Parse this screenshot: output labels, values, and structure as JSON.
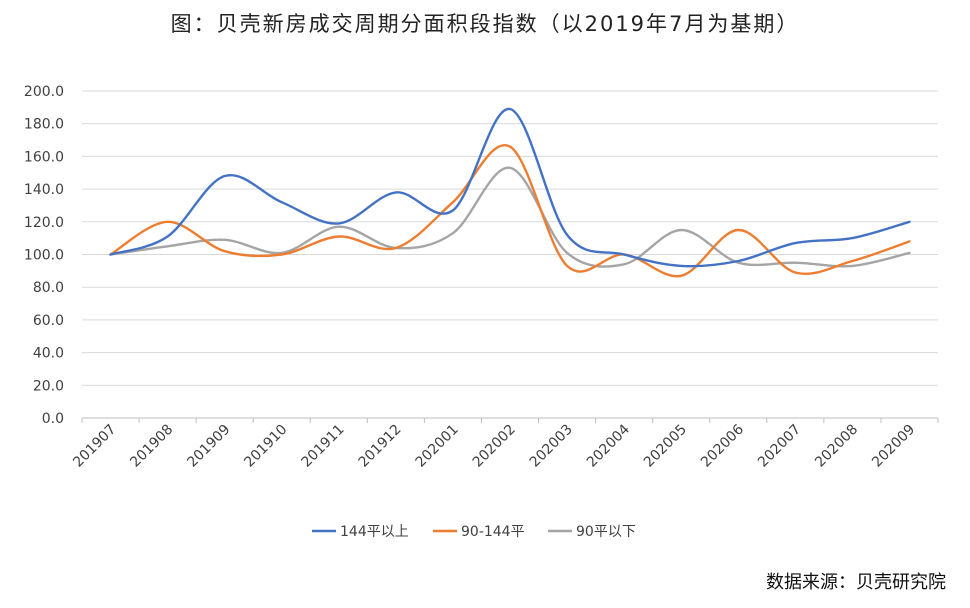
{
  "title": "图：贝壳新房成交周期分面积段指数（以2019年7月为基期）",
  "source": "数据来源：贝壳研究院",
  "chart_data": {
    "type": "line",
    "smooth": true,
    "categories": [
      "201907",
      "201908",
      "201909",
      "201910",
      "201911",
      "201912",
      "202001",
      "202002",
      "202003",
      "202004",
      "202005",
      "202006",
      "202007",
      "202008",
      "202009"
    ],
    "ylim": [
      0,
      200
    ],
    "yticks": [
      "0.0",
      "20.0",
      "40.0",
      "60.0",
      "80.0",
      "100.0",
      "120.0",
      "140.0",
      "160.0",
      "180.0",
      "200.0"
    ],
    "grid": true,
    "legend": "bottom",
    "series": [
      {
        "name": "144平以上",
        "color": "#4472C4",
        "values": [
          100,
          111,
          148,
          132,
          119,
          138,
          127,
          189,
          112,
          100,
          93,
          96,
          107,
          110,
          120
        ]
      },
      {
        "name": "90-144平",
        "color": "#ED7D31",
        "values": [
          100,
          120,
          102,
          100,
          111,
          104,
          132,
          166,
          93,
          100,
          87,
          115,
          89,
          96,
          108
        ]
      },
      {
        "name": "90平以下",
        "color": "#A5A5A5",
        "values": [
          100,
          105,
          109,
          101,
          117,
          104,
          113,
          153,
          101,
          94,
          115,
          95,
          95,
          93,
          101
        ]
      }
    ]
  }
}
